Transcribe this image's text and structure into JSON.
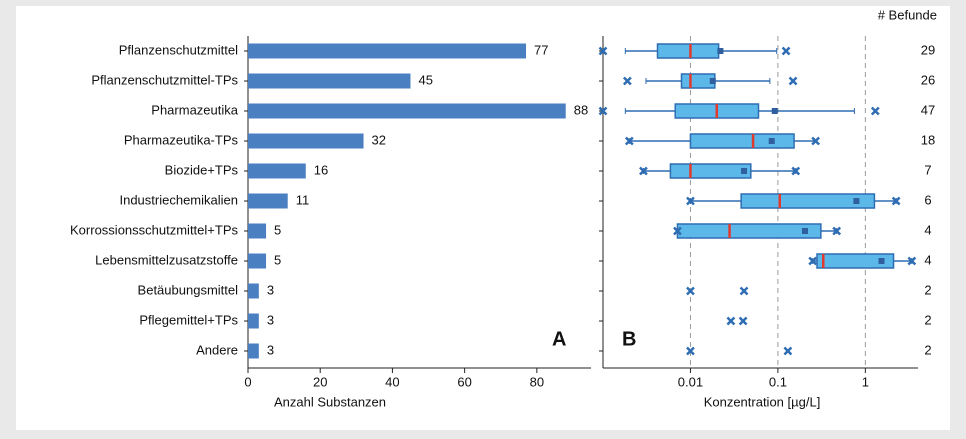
{
  "chart_data": [
    {
      "type": "bar",
      "orientation": "horizontal",
      "label": "A",
      "categories": [
        "Pflanzenschutzmittel",
        "Pflanzenschutzmittel-TPs",
        "Pharmazeutika",
        "Pharmazeutika-TPs",
        "Biozide+TPs",
        "Industriechemikalien",
        "Korrossionsschutzmittel+TPs",
        "Lebensmittelzusatzstoffe",
        "Betäubungsmittel",
        "Pflegemittel+TPs",
        "Andere"
      ],
      "values": [
        77,
        45,
        88,
        32,
        16,
        11,
        5,
        5,
        3,
        3,
        3
      ],
      "color": "#4a7fc1",
      "xlim": [
        0,
        95
      ],
      "xticks": [
        0,
        20,
        40,
        60,
        80
      ],
      "xlabel": "Anzahl Substanzen"
    },
    {
      "type": "box",
      "label": "B",
      "log_x": true,
      "grid": true,
      "xlim": [
        0.001,
        4
      ],
      "xticks": [
        0.01,
        0.1,
        1
      ],
      "xlabel": "Konzentration [µg/L]",
      "counts_title": "# Befunde",
      "counts": [
        29,
        26,
        47,
        18,
        7,
        6,
        4,
        4,
        2,
        2,
        2
      ],
      "box_color": "#5bb8e8",
      "edge_color": "#2f6db3",
      "median_color": "#e03a2f",
      "mean_color": "#2f5f9e",
      "boxes": [
        {
          "whislo": 0.0018,
          "q1": 0.0042,
          "med": 0.01,
          "q3": 0.021,
          "whishi": 0.097,
          "mean": 0.022,
          "fliers": [
            0.001,
            0.124
          ]
        },
        {
          "whislo": 0.0031,
          "q1": 0.0079,
          "med": 0.01,
          "q3": 0.019,
          "whishi": 0.081,
          "mean": 0.018,
          "fliers": [
            0.0019,
            0.149
          ]
        },
        {
          "whislo": 0.0018,
          "q1": 0.0067,
          "med": 0.02,
          "q3": 0.06,
          "whishi": 0.75,
          "mean": 0.092,
          "fliers": [
            0.001,
            1.3
          ]
        },
        {
          "whislo": 0.002,
          "q1": 0.01,
          "med": 0.052,
          "q3": 0.153,
          "whishi": 0.26,
          "mean": 0.085,
          "fliers": [
            0.002,
            0.27
          ]
        },
        {
          "whislo": 0.0029,
          "q1": 0.0059,
          "med": 0.01,
          "q3": 0.049,
          "whishi": 0.16,
          "mean": 0.041,
          "fliers": [
            0.0029,
            0.16
          ]
        },
        {
          "whislo": 0.01,
          "q1": 0.038,
          "med": 0.105,
          "q3": 1.27,
          "whishi": 2.25,
          "mean": 0.79,
          "fliers": [
            0.01,
            2.25
          ]
        },
        {
          "whislo": 0.0071,
          "q1": 0.0071,
          "med": 0.028,
          "q3": 0.31,
          "whishi": 0.47,
          "mean": 0.204,
          "fliers": [
            0.0071,
            0.47
          ]
        },
        {
          "whislo": 0.25,
          "q1": 0.28,
          "med": 0.33,
          "q3": 2.1,
          "whishi": 3.4,
          "mean": 1.53,
          "fliers": [
            0.25,
            3.4
          ]
        },
        {
          "fliers": [
            0.01,
            0.041
          ]
        },
        {
          "fliers": [
            0.029,
            0.04
          ]
        },
        {
          "fliers": [
            0.01,
            0.13
          ]
        }
      ]
    }
  ]
}
